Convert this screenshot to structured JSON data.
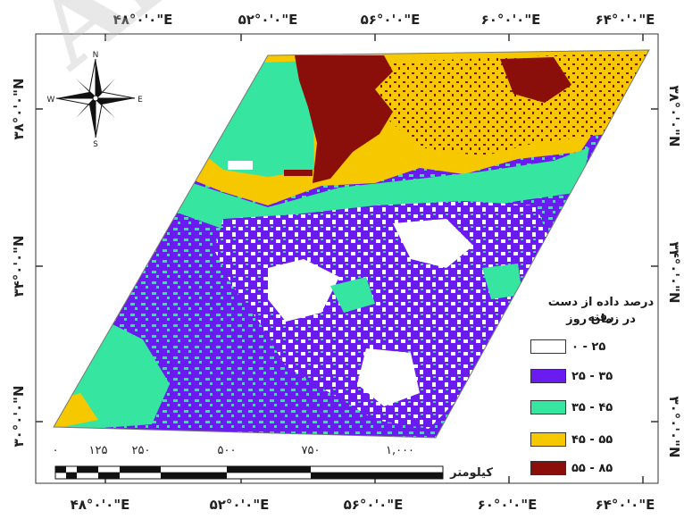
{
  "watermark": "Arc",
  "top_labels": [
    "۴۸°۰'۰\"E",
    "۵۲°۰'۰\"E",
    "۵۶°۰'۰\"E",
    "۶۰°۰'۰\"E",
    "۶۴°۰'۰\"E"
  ],
  "bottom_labels": [
    "۴۸°۰'۰\"E",
    "۵۲°۰'۰\"E",
    "۵۶°۰'۰\"E",
    "۶۰°۰'۰\"E",
    "۶۴°۰'۰\"E"
  ],
  "left_labels": [
    "۳۸°۰'۰\"N",
    "۳۴°۰'۰\"N",
    "۳۰°۰'۰\"N"
  ],
  "right_labels": [
    "۳۸°۰'۰\"N",
    "۳۴°۰'۰\"N",
    "۳۰°۰'۰\"N"
  ],
  "compass": {
    "n": "N",
    "s": "S",
    "e": "E",
    "w": "W"
  },
  "legend": {
    "title_line1": "درصد داده از دست رفته",
    "title_line2": "در زمان روز",
    "items": [
      {
        "label": "۰ - ۲۵",
        "color": "#ffffff"
      },
      {
        "label": "۲۵ - ۳۵",
        "color": "#6a1bf0"
      },
      {
        "label": "۳۵ - ۴۵",
        "color": "#36e6a0"
      },
      {
        "label": "۴۵ - ۵۵",
        "color": "#f5c800"
      },
      {
        "label": "۵۵ - ۸۵",
        "color": "#8a0f0a"
      }
    ]
  },
  "scale_bar": {
    "ticks": [
      "۰",
      "۱۲۵",
      "۲۵۰",
      "۵۰۰",
      "۷۵۰",
      "۱,۰۰۰"
    ],
    "unit": "کیلومتر"
  }
}
